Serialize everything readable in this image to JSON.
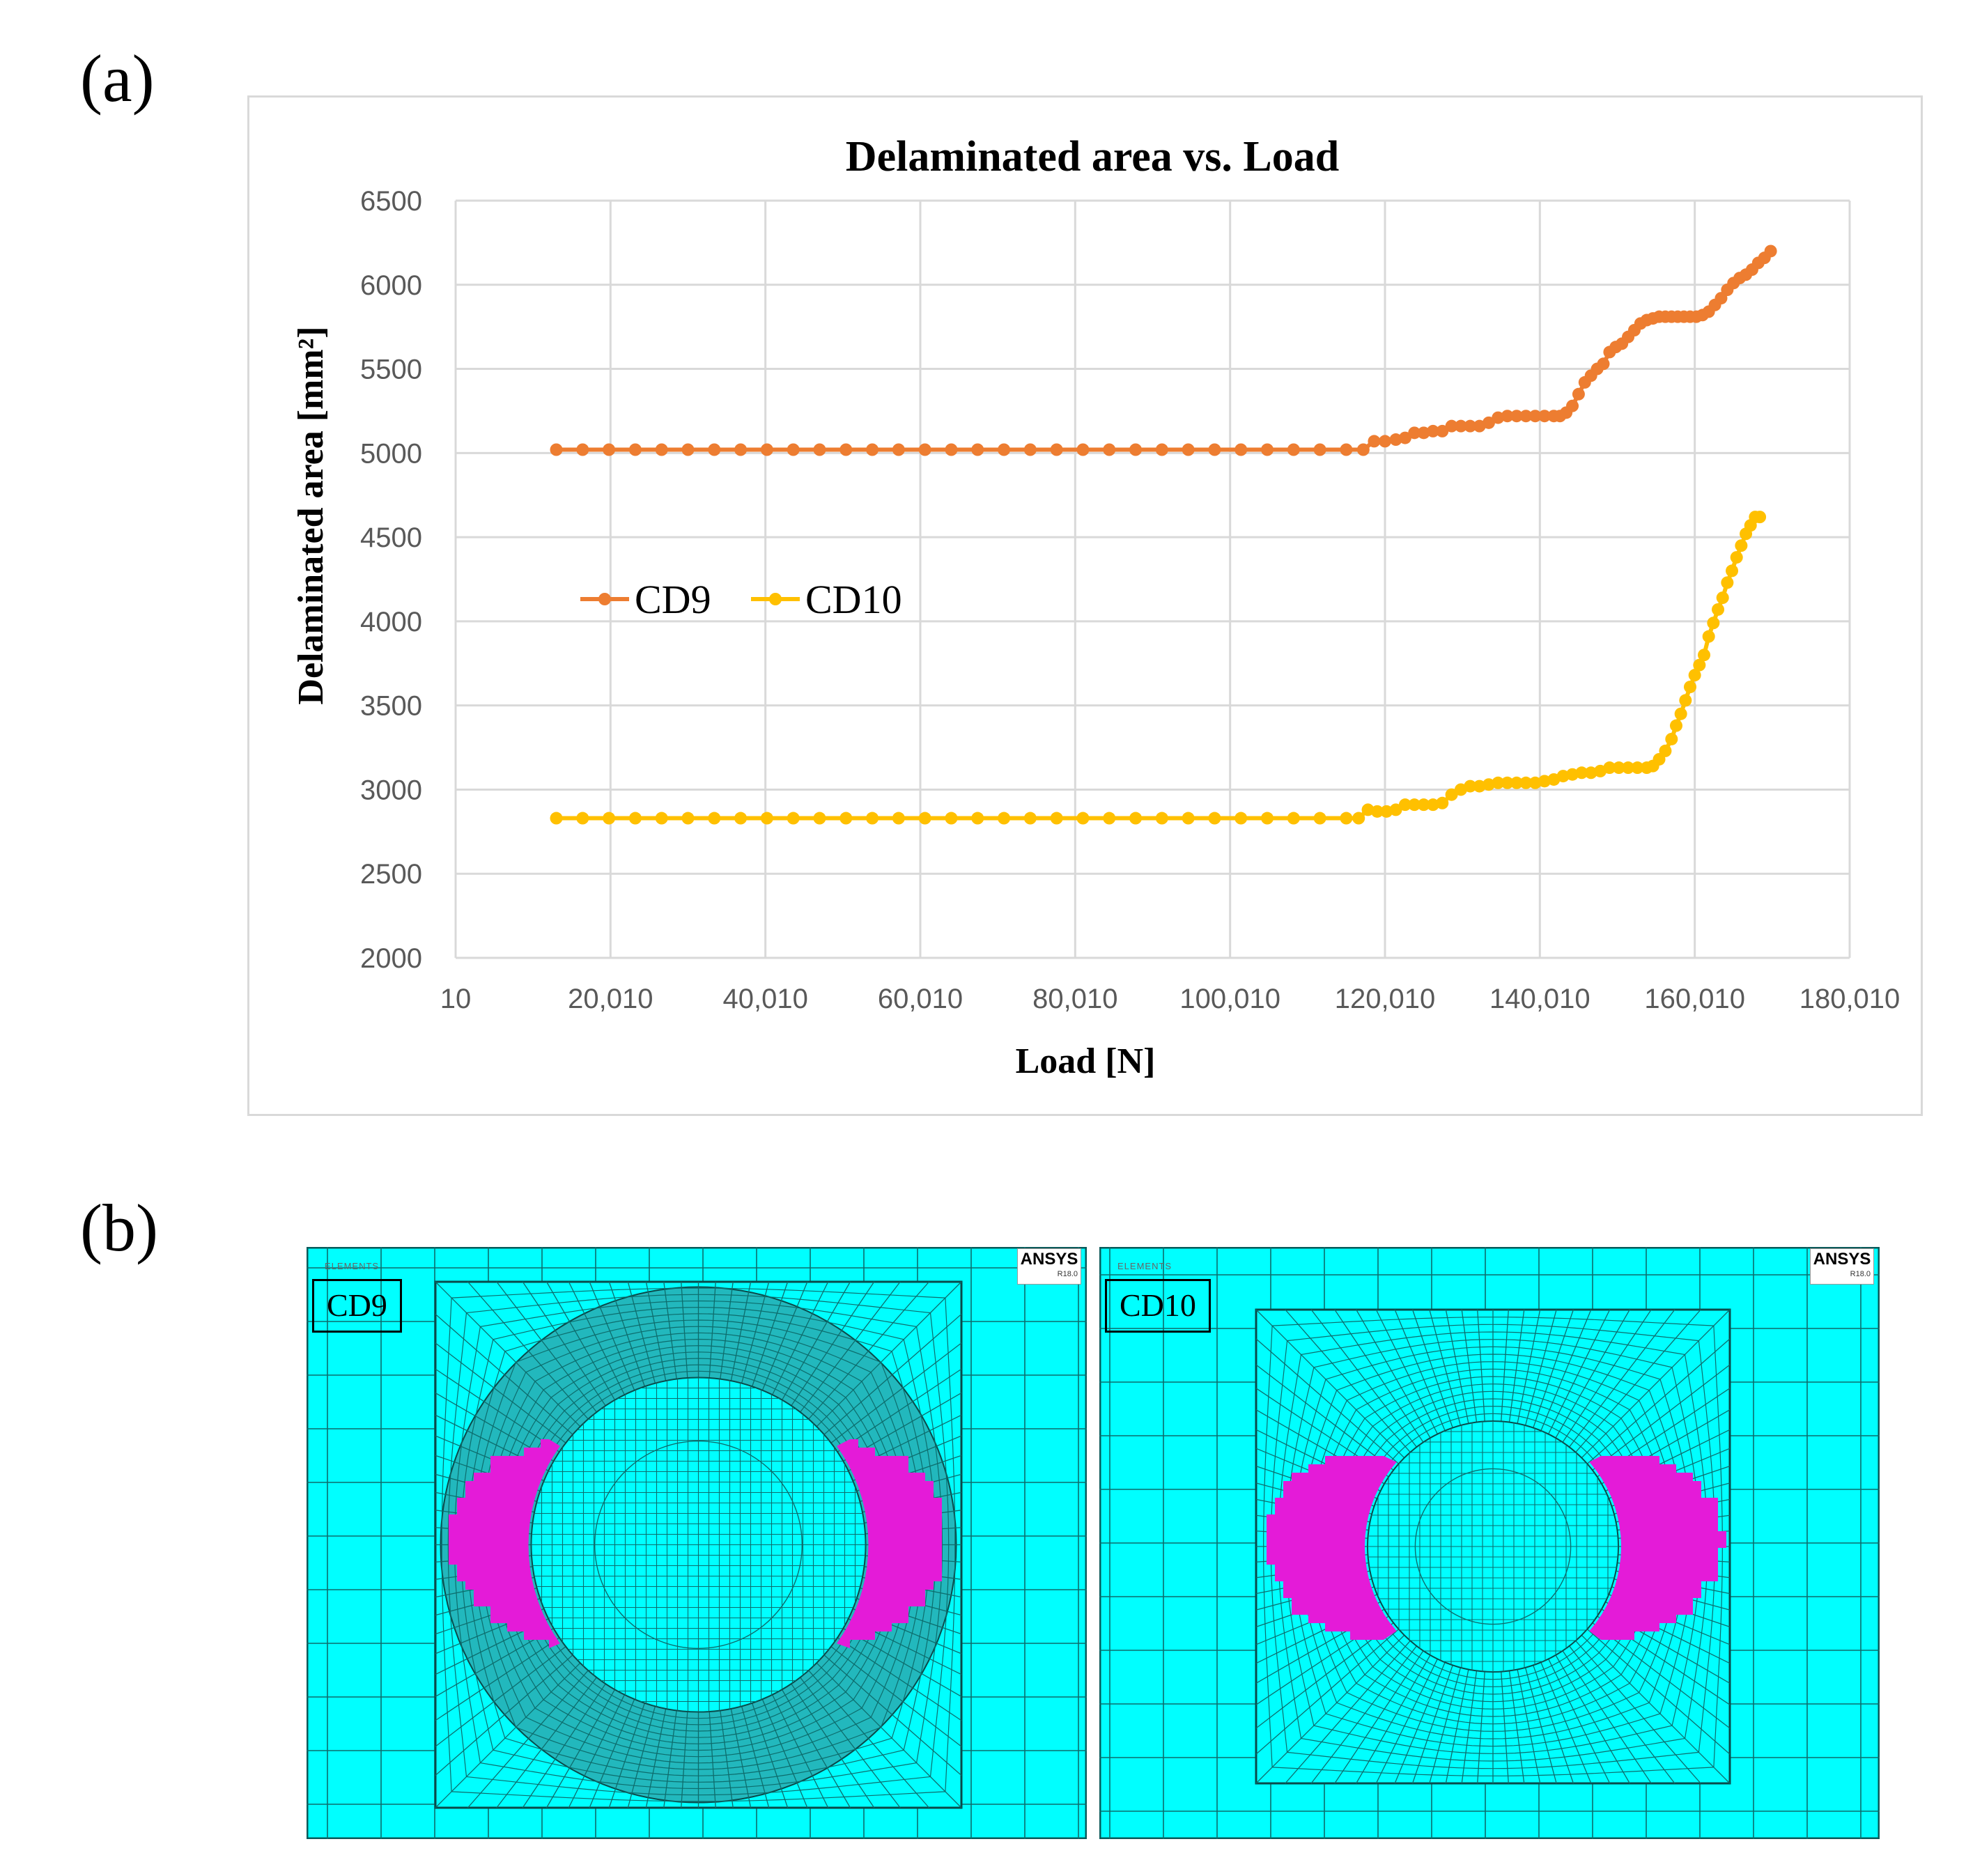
{
  "panel_labels": {
    "a": "(a)",
    "b": "(b)"
  },
  "colors": {
    "cd9": "#ED7D31",
    "cd10": "#FFC000",
    "grid": "#d9d9d9",
    "mesh_fill": "#00FFFF",
    "mesh_line": "#0d6d6d",
    "delamination": "#E41BD8"
  },
  "chart_data": {
    "type": "line",
    "title": "Delaminated area vs. Load",
    "xlabel": "Load [N]",
    "ylabel": "Delaminated area  [mm²]",
    "xlim": [
      10,
      180010
    ],
    "ylim": [
      2000,
      6500
    ],
    "x_ticks": [
      10,
      20010,
      40010,
      60010,
      80010,
      100010,
      120010,
      140010,
      160010,
      180010
    ],
    "x_tick_labels": [
      "10",
      "20,010",
      "40,010",
      "60,010",
      "80,010",
      "100,010",
      "120,010",
      "140,010",
      "160,010",
      "180,010"
    ],
    "y_ticks": [
      2000,
      2500,
      3000,
      3500,
      4000,
      4500,
      5000,
      5500,
      6000,
      6500
    ],
    "y_tick_labels": [
      "2000",
      "2500",
      "3000",
      "3500",
      "4000",
      "4500",
      "5000",
      "5500",
      "6000",
      "6500"
    ],
    "grid": true,
    "legend_position": "middle-left",
    "series": [
      {
        "name": "CD9",
        "x": [
          13010,
          16410,
          19810,
          23210,
          26610,
          30010,
          33410,
          36810,
          40210,
          43610,
          47010,
          50410,
          53810,
          57210,
          60610,
          64010,
          67410,
          70810,
          74210,
          77610,
          81010,
          84410,
          87810,
          91210,
          94610,
          98010,
          101410,
          104810,
          108210,
          111610,
          115010,
          117210,
          118610,
          120010,
          121410,
          122610,
          123810,
          125010,
          126210,
          127410,
          128610,
          129810,
          131010,
          132210,
          133410,
          134610,
          135810,
          137010,
          138210,
          139410,
          140610,
          141810,
          142610,
          143410,
          144210,
          145010,
          145810,
          146610,
          147410,
          148210,
          149010,
          149810,
          150610,
          151410,
          152210,
          153010,
          153810,
          154610,
          155410,
          156210,
          157010,
          157810,
          158610,
          159410,
          160210,
          161010,
          161810,
          162610,
          163410,
          164210,
          165010,
          165810,
          166610,
          167410,
          168210,
          169010,
          169810
        ],
        "y": [
          5020,
          5020,
          5020,
          5020,
          5020,
          5020,
          5020,
          5020,
          5020,
          5020,
          5020,
          5020,
          5020,
          5020,
          5020,
          5020,
          5020,
          5020,
          5020,
          5020,
          5020,
          5020,
          5020,
          5020,
          5020,
          5020,
          5020,
          5020,
          5020,
          5020,
          5020,
          5020,
          5070,
          5070,
          5080,
          5090,
          5120,
          5120,
          5130,
          5130,
          5160,
          5160,
          5160,
          5160,
          5180,
          5210,
          5220,
          5220,
          5220,
          5220,
          5220,
          5220,
          5220,
          5240,
          5280,
          5350,
          5420,
          5460,
          5500,
          5530,
          5600,
          5630,
          5650,
          5690,
          5730,
          5770,
          5790,
          5800,
          5810,
          5810,
          5810,
          5810,
          5810,
          5810,
          5810,
          5820,
          5840,
          5880,
          5920,
          5970,
          6010,
          6040,
          6060,
          6090,
          6130,
          6160,
          6200
        ]
      },
      {
        "name": "CD10",
        "x": [
          13010,
          16410,
          19810,
          23210,
          26610,
          30010,
          33410,
          36810,
          40210,
          43610,
          47010,
          50410,
          53810,
          57210,
          60610,
          64010,
          67410,
          70810,
          74210,
          77610,
          81010,
          84410,
          87810,
          91210,
          94610,
          98010,
          101410,
          104810,
          108210,
          111610,
          115010,
          116610,
          117810,
          119010,
          120210,
          121410,
          122610,
          123810,
          125010,
          126210,
          127410,
          128610,
          129810,
          131010,
          132210,
          133410,
          134610,
          135810,
          137010,
          138210,
          139410,
          140610,
          141810,
          143010,
          144210,
          145410,
          146610,
          147810,
          149010,
          150210,
          151410,
          152610,
          153810,
          154610,
          155410,
          156210,
          157010,
          157610,
          158210,
          158810,
          159410,
          160010,
          160610,
          161210,
          161810,
          162410,
          163010,
          163610,
          164210,
          164810,
          165410,
          166010,
          166610,
          167210,
          167810,
          168410
        ],
        "y": [
          2830,
          2830,
          2830,
          2830,
          2830,
          2830,
          2830,
          2830,
          2830,
          2830,
          2830,
          2830,
          2830,
          2830,
          2830,
          2830,
          2830,
          2830,
          2830,
          2830,
          2830,
          2830,
          2830,
          2830,
          2830,
          2830,
          2830,
          2830,
          2830,
          2830,
          2830,
          2830,
          2880,
          2870,
          2870,
          2880,
          2910,
          2910,
          2910,
          2910,
          2920,
          2970,
          3000,
          3020,
          3020,
          3030,
          3040,
          3040,
          3040,
          3040,
          3040,
          3050,
          3060,
          3080,
          3090,
          3100,
          3100,
          3110,
          3130,
          3130,
          3130,
          3130,
          3130,
          3140,
          3180,
          3230,
          3300,
          3380,
          3450,
          3530,
          3610,
          3680,
          3740,
          3800,
          3910,
          3990,
          4070,
          4140,
          4230,
          4300,
          4380,
          4450,
          4520,
          4570,
          4620,
          4620
        ]
      }
    ]
  },
  "simulations": {
    "cd9": {
      "label": "CD9",
      "software": "ANSYS",
      "version": "R18.0",
      "header": "ELEMENTS"
    },
    "cd10": {
      "label": "CD10",
      "software": "ANSYS",
      "version": "R18.0",
      "header": "ELEMENTS"
    }
  }
}
